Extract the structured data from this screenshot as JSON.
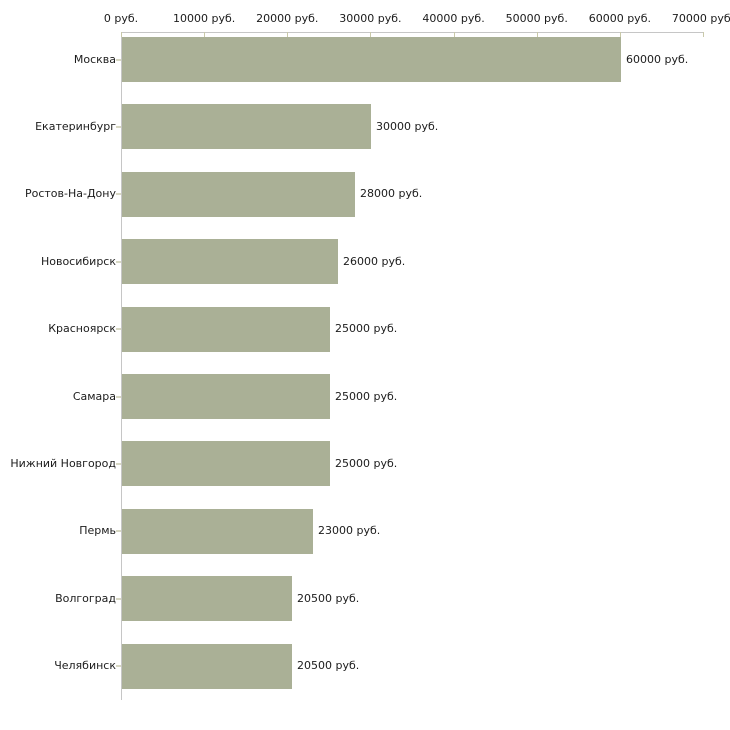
{
  "chart_data": {
    "type": "bar",
    "orientation": "horizontal",
    "title": "",
    "xlabel": "",
    "ylabel": "",
    "categories": [
      "Москва",
      "Екатеринбург",
      "Ростов-На-Дону",
      "Новосибирск",
      "Красноярск",
      "Самара",
      "Нижний Новгород",
      "Пермь",
      "Волгоград",
      "Челябинск"
    ],
    "values": [
      60000,
      30000,
      28000,
      26000,
      25000,
      25000,
      25000,
      23000,
      20500,
      20500
    ],
    "value_labels": [
      "60000 руб.",
      "30000 руб.",
      "28000 руб.",
      "26000 руб.",
      "25000 руб.",
      "25000 руб.",
      "25000 руб.",
      "23000 руб.",
      "20500 руб.",
      "20500 руб."
    ],
    "x_tick_values": [
      0,
      10000,
      20000,
      30000,
      40000,
      50000,
      60000,
      70000
    ],
    "x_tick_labels": [
      "0 руб.",
      "10000 руб.",
      "20000 руб.",
      "30000 руб.",
      "40000 руб.",
      "50000 руб.",
      "60000 руб.",
      "70000 руб."
    ],
    "xlim": [
      0,
      70000
    ],
    "unit": "руб.",
    "grid": false,
    "legend": null,
    "axis_position": "top",
    "colors": {
      "bar": "#aab096",
      "axis_line": "#c6c6c6",
      "tick": "#c9c9a9",
      "category_dash": "#d8d8c4",
      "text": "#1c1c1c",
      "background": "#ffffff"
    }
  }
}
